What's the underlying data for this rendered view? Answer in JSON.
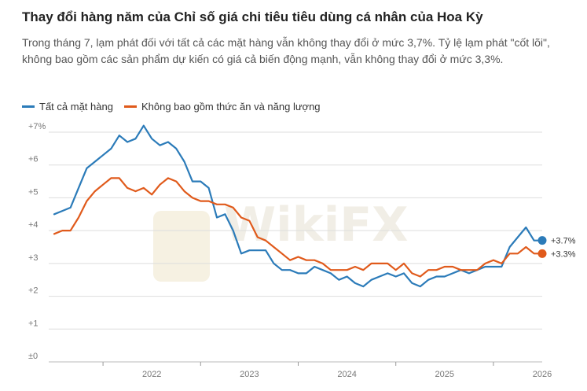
{
  "title": "Thay đổi hàng năm của Chỉ số giá chi tiêu tiêu dùng cá nhân của Hoa Kỳ",
  "subtitle": "Trong tháng 7, lạm phát đối với tất cả các mặt hàng vẫn không thay đổi ở mức 3,7%. Tỷ lệ lạm phát \"cốt lõi\", không bao gồm các sản phẩm dự kiến có giá cả biến động mạnh, vẫn không thay đổi ở mức 3,3%.",
  "watermark": "WikiFX",
  "colors": {
    "all_items": "#2b7bb9",
    "core": "#e05a1b",
    "grid": "#dddddd",
    "axis": "#999999"
  },
  "chart_data": {
    "type": "line",
    "title": "Thay đổi hàng năm của Chỉ số giá chi tiêu tiêu dùng cá nhân của Hoa Kỳ",
    "xlabel": "",
    "ylabel": "",
    "ylim": [
      0,
      7
    ],
    "grid": true,
    "legend_position": "top-left",
    "y_ticks": [
      {
        "value": 0,
        "label": "±0"
      },
      {
        "value": 1,
        "label": "+1"
      },
      {
        "value": 2,
        "label": "+2"
      },
      {
        "value": 3,
        "label": "+3"
      },
      {
        "value": 4,
        "label": "+4"
      },
      {
        "value": 5,
        "label": "+5"
      },
      {
        "value": 6,
        "label": "+6"
      },
      {
        "value": 7,
        "label": "+7%"
      }
    ],
    "x_ticks": [
      "2022",
      "2023",
      "2024",
      "2025",
      "2026"
    ],
    "x_start": "2021-07",
    "series": [
      {
        "name": "Tất cả mặt hàng",
        "color": "#2b7bb9",
        "end_label": "+3.7%",
        "values": [
          4.5,
          4.6,
          4.7,
          5.3,
          5.9,
          6.1,
          6.3,
          6.5,
          6.9,
          6.7,
          6.8,
          7.2,
          6.8,
          6.6,
          6.7,
          6.5,
          6.1,
          5.5,
          5.5,
          5.3,
          4.4,
          4.5,
          4.0,
          3.3,
          3.4,
          3.4,
          3.4,
          3.0,
          2.8,
          2.8,
          2.7,
          2.7,
          2.9,
          2.8,
          2.7,
          2.5,
          2.6,
          2.4,
          2.3,
          2.5,
          2.6,
          2.7,
          2.6,
          2.7,
          2.4,
          2.3,
          2.5,
          2.6,
          2.6,
          2.7,
          2.8,
          2.7,
          2.8,
          2.9,
          2.9,
          2.9,
          3.5,
          3.8,
          4.1,
          3.7,
          3.7
        ]
      },
      {
        "name": "Không bao gồm thức ăn và năng lượng",
        "color": "#e05a1b",
        "end_label": "+3.3%",
        "values": [
          3.9,
          4.0,
          4.0,
          4.4,
          4.9,
          5.2,
          5.4,
          5.6,
          5.6,
          5.3,
          5.2,
          5.3,
          5.1,
          5.4,
          5.6,
          5.5,
          5.2,
          5.0,
          4.9,
          4.9,
          4.8,
          4.8,
          4.7,
          4.4,
          4.3,
          3.8,
          3.7,
          3.5,
          3.3,
          3.1,
          3.2,
          3.1,
          3.1,
          3.0,
          2.8,
          2.8,
          2.8,
          2.9,
          2.8,
          3.0,
          3.0,
          3.0,
          2.8,
          3.0,
          2.7,
          2.6,
          2.8,
          2.8,
          2.9,
          2.9,
          2.8,
          2.8,
          2.8,
          3.0,
          3.1,
          3.0,
          3.3,
          3.3,
          3.5,
          3.3,
          3.3
        ]
      }
    ]
  }
}
